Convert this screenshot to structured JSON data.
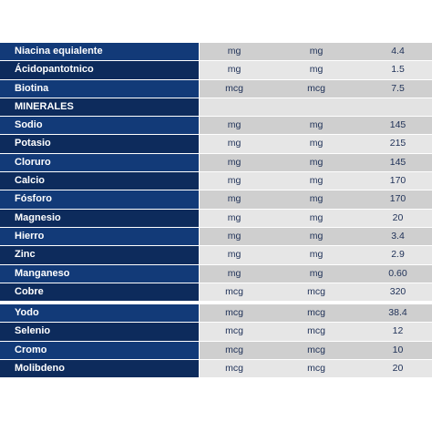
{
  "rows": [
    {
      "name": "Niacina equialente",
      "u1": "mg",
      "u2": "mg",
      "value": "4.4"
    },
    {
      "name": "Ácidopantotnico",
      "u1": "mg",
      "u2": "mg",
      "value": "1.5"
    },
    {
      "name": "Biotina",
      "u1": "mcg",
      "u2": "mcg",
      "value": "7.5"
    },
    {
      "name": "MINERALES",
      "u1": "",
      "u2": "",
      "value": ""
    },
    {
      "name": "Sodio",
      "u1": "mg",
      "u2": "mg",
      "value": "145"
    },
    {
      "name": "Potasio",
      "u1": "mg",
      "u2": "mg",
      "value": "215"
    },
    {
      "name": "Cloruro",
      "u1": "mg",
      "u2": "mg",
      "value": "145"
    },
    {
      "name": "Calcio",
      "u1": "mg",
      "u2": "mg",
      "value": "170"
    },
    {
      "name": "Fósforo",
      "u1": "mg",
      "u2": "mg",
      "value": "170"
    },
    {
      "name": "Magnesio",
      "u1": "mg",
      "u2": "mg",
      "value": "20"
    },
    {
      "name": "Hierro",
      "u1": "mg",
      "u2": "mg",
      "value": "3.4"
    },
    {
      "name": "Zinc",
      "u1": "mg",
      "u2": "mg",
      "value": "2.9"
    },
    {
      "name": "Manganeso",
      "u1": "mg",
      "u2": "mg",
      "value": "0.60"
    },
    {
      "name": "Cobre",
      "u1": "mcg",
      "u2": "mcg",
      "value": "320"
    },
    {
      "name": "Yodo",
      "u1": "mcg",
      "u2": "mcg",
      "value": "38.4"
    },
    {
      "name": "Selenio",
      "u1": "mcg",
      "u2": "mcg",
      "value": "12"
    },
    {
      "name": "Cromo",
      "u1": "mcg",
      "u2": "mcg",
      "value": "10"
    },
    {
      "name": "Molibdeno",
      "u1": "mcg",
      "u2": "mcg",
      "value": "20"
    }
  ]
}
